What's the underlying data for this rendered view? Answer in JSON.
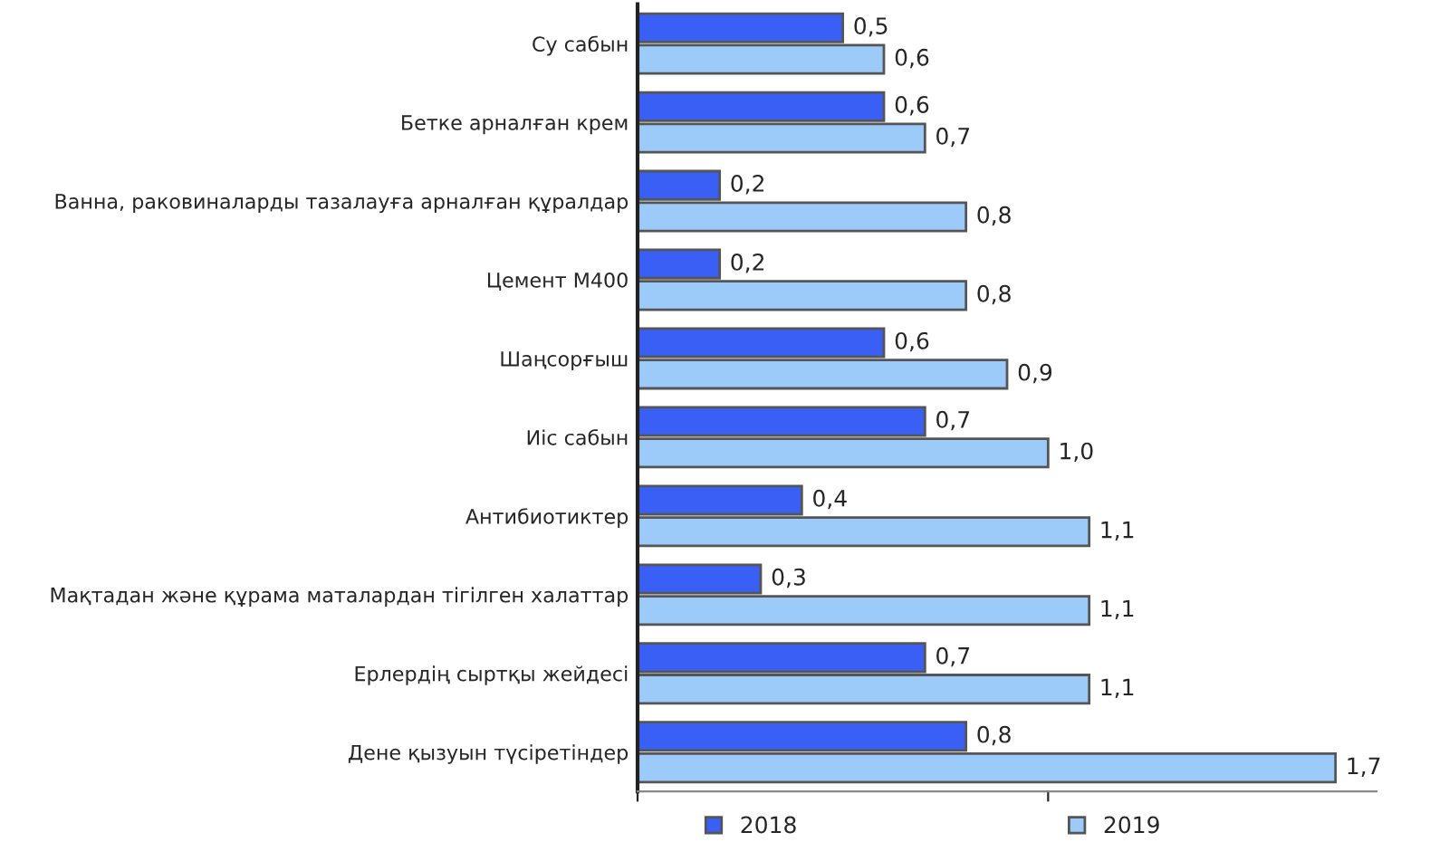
{
  "chart_data": {
    "type": "bar",
    "orientation": "horizontal",
    "categories": [
      "Су сабын",
      "Бетке арналған крем",
      "Ванна, раковиналарды тазалауға арналған құралдар",
      "Цемент М400",
      "Шаңсорғыш",
      "Иіс сабын",
      "Антибиотиктер",
      "Мақтадан және құрама маталардан тігілген халаттар",
      "Ерлердің сыртқы жейдесі",
      "Дене қызуын түсіретіндер"
    ],
    "series": [
      {
        "name": "2018",
        "color": "#3a5ff5",
        "values": [
          0.5,
          0.6,
          0.2,
          0.2,
          0.6,
          0.7,
          0.4,
          0.3,
          0.7,
          0.8
        ],
        "value_labels": [
          "0,5",
          "0,6",
          "0,2",
          "0,2",
          "0,6",
          "0,7",
          "0,4",
          "0,3",
          "0,7",
          "0,8"
        ]
      },
      {
        "name": "2019",
        "color": "#9ccaf9",
        "values": [
          0.6,
          0.7,
          0.8,
          0.8,
          0.9,
          1.0,
          1.1,
          1.1,
          1.1,
          1.7
        ],
        "value_labels": [
          "0,6",
          "0,7",
          "0,8",
          "0,8",
          "0,9",
          "1,0",
          "1,1",
          "1,1",
          "1,1",
          "1,7"
        ]
      }
    ],
    "xlim": [
      0,
      1.8
    ],
    "xticks": [
      {
        "value": 0,
        "label": null
      },
      {
        "value": 1,
        "label": null
      }
    ],
    "grid": false,
    "legend": "bottom"
  }
}
